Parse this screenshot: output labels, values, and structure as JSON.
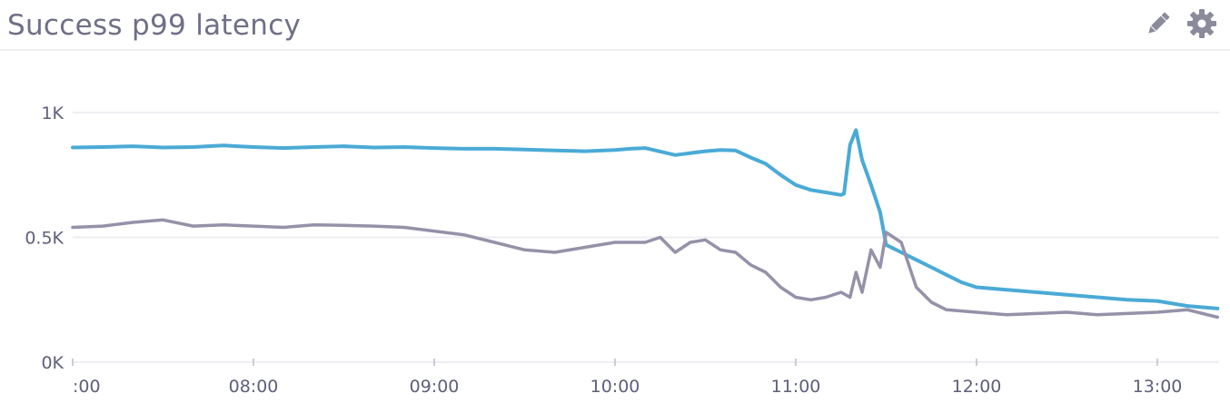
{
  "widget": {
    "title": "Success p99 latency"
  },
  "toolbar": {
    "edit_icon": "pencil-icon",
    "settings_icon": "gear-icon"
  },
  "colors": {
    "series_blue": "#4aaad6",
    "series_grey": "#9591a8",
    "grid": "#eceef2",
    "axis_text": "#5e5f7a",
    "title": "#6f6f87"
  },
  "chart_data": {
    "type": "line",
    "title": "Success p99 latency",
    "xlabel": "",
    "ylabel": "",
    "grid": true,
    "x_range": [
      "07:00",
      "13:20"
    ],
    "ylim": [
      0,
      1000
    ],
    "y_ticks": [
      {
        "value": 0,
        "label": "0K"
      },
      {
        "value": 500,
        "label": "0.5K"
      },
      {
        "value": 1000,
        "label": "1K"
      }
    ],
    "x_ticks": [
      {
        "time": "07:00",
        "label": ":00"
      },
      {
        "time": "08:00",
        "label": "08:00"
      },
      {
        "time": "09:00",
        "label": "09:00"
      },
      {
        "time": "10:00",
        "label": "10:00"
      },
      {
        "time": "11:00",
        "label": "11:00"
      },
      {
        "time": "12:00",
        "label": "12:00"
      },
      {
        "time": "13:00",
        "label": "13:00"
      }
    ],
    "series": [
      {
        "color": "#4aaad6",
        "x": [
          "07:00",
          "07:10",
          "07:20",
          "07:30",
          "07:40",
          "07:50",
          "08:00",
          "08:10",
          "08:20",
          "08:30",
          "08:40",
          "08:50",
          "09:00",
          "09:10",
          "09:20",
          "09:30",
          "09:40",
          "09:50",
          "10:00",
          "10:05",
          "10:10",
          "10:20",
          "10:30",
          "10:35",
          "10:40",
          "10:45",
          "10:50",
          "10:55",
          "11:00",
          "11:05",
          "11:10",
          "11:15",
          "11:16",
          "11:18",
          "11:20",
          "11:22",
          "11:25",
          "11:28",
          "11:30",
          "11:35",
          "11:40",
          "11:45",
          "11:50",
          "11:55",
          "12:00",
          "12:10",
          "12:20",
          "12:30",
          "12:40",
          "12:50",
          "13:00",
          "13:10",
          "13:20"
        ],
        "y": [
          860,
          862,
          865,
          860,
          862,
          868,
          862,
          858,
          862,
          865,
          860,
          862,
          858,
          855,
          855,
          852,
          848,
          845,
          850,
          855,
          858,
          830,
          845,
          850,
          848,
          820,
          795,
          750,
          710,
          690,
          680,
          670,
          675,
          870,
          930,
          810,
          710,
          600,
          470,
          440,
          410,
          380,
          350,
          320,
          300,
          290,
          280,
          270,
          260,
          250,
          245,
          225,
          215
        ]
      },
      {
        "color": "#9591a8",
        "x": [
          "07:00",
          "07:10",
          "07:20",
          "07:30",
          "07:40",
          "07:50",
          "08:00",
          "08:10",
          "08:20",
          "08:30",
          "08:40",
          "08:50",
          "09:00",
          "09:10",
          "09:20",
          "09:30",
          "09:40",
          "09:50",
          "10:00",
          "10:10",
          "10:15",
          "10:20",
          "10:25",
          "10:30",
          "10:35",
          "10:40",
          "10:45",
          "10:50",
          "10:55",
          "11:00",
          "11:05",
          "11:10",
          "11:15",
          "11:18",
          "11:20",
          "11:22",
          "11:25",
          "11:28",
          "11:30",
          "11:35",
          "11:40",
          "11:45",
          "11:50",
          "12:00",
          "12:10",
          "12:20",
          "12:30",
          "12:40",
          "12:50",
          "13:00",
          "13:10",
          "13:20"
        ],
        "y": [
          540,
          545,
          560,
          570,
          545,
          550,
          545,
          540,
          550,
          548,
          545,
          540,
          525,
          510,
          480,
          450,
          440,
          460,
          480,
          480,
          500,
          440,
          480,
          490,
          450,
          440,
          390,
          360,
          300,
          260,
          250,
          260,
          280,
          260,
          360,
          280,
          450,
          380,
          520,
          480,
          300,
          240,
          210,
          200,
          190,
          195,
          200,
          190,
          195,
          200,
          210,
          180
        ]
      }
    ]
  }
}
